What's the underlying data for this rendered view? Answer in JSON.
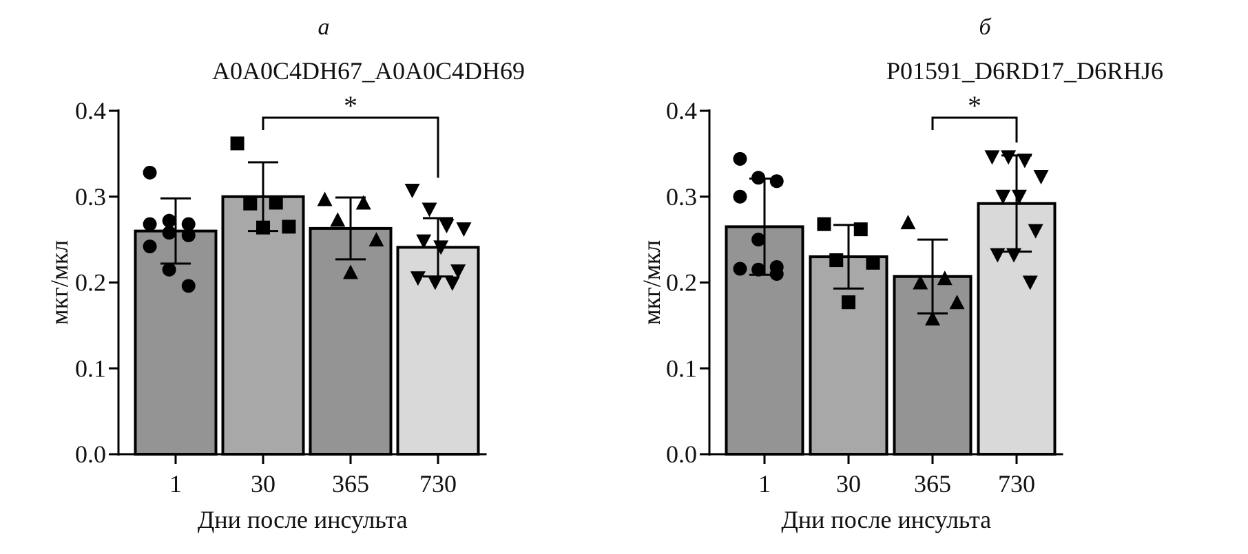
{
  "chart_data": [
    {
      "type": "bar",
      "panel_label": "а",
      "title": "A0A0C4DH67_A0A0C4DH69",
      "xlabel": "Дни после инсульта",
      "ylabel": "мкг/мкл",
      "ylim": [
        0,
        0.4
      ],
      "yticks": [
        "0.0",
        "0.1",
        "0.2",
        "0.3",
        "0.4"
      ],
      "categories": [
        "1",
        "30",
        "365",
        "730"
      ],
      "values": [
        0.26,
        0.3,
        0.263,
        0.241
      ],
      "error": [
        0.038,
        0.04,
        0.036,
        0.034
      ],
      "bar_colors": [
        "#949494",
        "#a8a8a8",
        "#949494",
        "#d9d9d9"
      ],
      "markers": [
        "circle",
        "square",
        "triangle-up",
        "triangle-down"
      ],
      "points": [
        [
          0.328,
          0.272,
          0.268,
          0.268,
          0.258,
          0.255,
          0.242,
          0.215,
          0.196
        ],
        [
          0.362,
          0.293,
          0.292,
          0.265,
          0.264
        ],
        [
          0.297,
          0.293,
          0.273,
          0.25,
          0.212
        ],
        [
          0.307,
          0.285,
          0.266,
          0.262,
          0.248,
          0.241,
          0.213,
          0.205,
          0.2,
          0.199
        ]
      ],
      "significance": {
        "from": "30",
        "to": "730",
        "label": "*"
      },
      "grid": false
    },
    {
      "type": "bar",
      "panel_label": "б",
      "title": "P01591_D6RD17_D6RHJ6",
      "xlabel": "Дни после инсульта",
      "ylabel": "мкг/мкл",
      "ylim": [
        0,
        0.4
      ],
      "yticks": [
        "0.0",
        "0.1",
        "0.2",
        "0.3",
        "0.4"
      ],
      "categories": [
        "1",
        "30",
        "365",
        "730"
      ],
      "values": [
        0.265,
        0.23,
        0.207,
        0.292
      ],
      "error": [
        0.056,
        0.037,
        0.043,
        0.056
      ],
      "bar_colors": [
        "#949494",
        "#a8a8a8",
        "#949494",
        "#d9d9d9"
      ],
      "markers": [
        "circle",
        "square",
        "triangle-up",
        "triangle-down"
      ],
      "points": [
        [
          0.344,
          0.322,
          0.318,
          0.3,
          0.25,
          0.218,
          0.216,
          0.215,
          0.21
        ],
        [
          0.268,
          0.262,
          0.226,
          0.223,
          0.177
        ],
        [
          0.27,
          0.205,
          0.2,
          0.177,
          0.158
        ],
        [
          0.346,
          0.346,
          0.342,
          0.323,
          0.3,
          0.3,
          0.26,
          0.232,
          0.232,
          0.2
        ]
      ],
      "significance": {
        "from": "365",
        "to": "730",
        "label": "*"
      },
      "grid": false
    }
  ]
}
